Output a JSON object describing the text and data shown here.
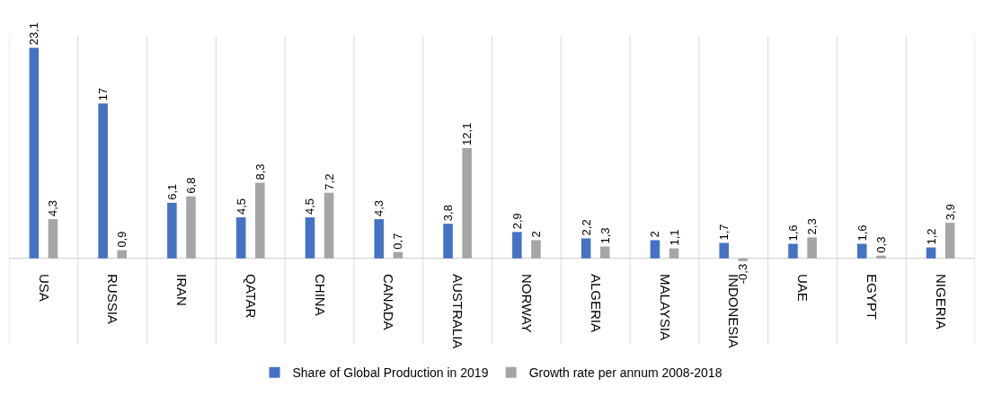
{
  "chart_data": {
    "type": "bar",
    "categories": [
      "USA",
      "RUSSIA",
      "IRAN",
      "QATAR",
      "CHINA",
      "CANADA",
      "AUSTRALIA",
      "NORWAY",
      "ALGERIA",
      "MALAYSIA",
      "INDONESIA",
      "UAE",
      "EGYPT",
      "NIGERIA"
    ],
    "series": [
      {
        "name": "Share of Global Production in 2019",
        "color": "#4472c4",
        "values": [
          23.1,
          17,
          6.1,
          4.5,
          4.5,
          4.3,
          3.8,
          2.9,
          2.2,
          2,
          1.7,
          1.6,
          1.6,
          1.2
        ],
        "value_labels": [
          "23,1",
          "17",
          "6,1",
          "4,5",
          "4,5",
          "4,3",
          "3,8",
          "2,9",
          "2,2",
          "2",
          "1,7",
          "1,6",
          "1,6",
          "1,2"
        ]
      },
      {
        "name": "Growth rate per annum 2008-2018",
        "color": "#a5a5a5",
        "values": [
          4.3,
          0.9,
          6.8,
          8.3,
          7.2,
          0.7,
          12.1,
          2,
          1.3,
          1.1,
          -0.3,
          2.3,
          0.3,
          3.9
        ],
        "value_labels": [
          "4,3",
          "0,9",
          "6,8",
          "8,3",
          "7,2",
          "0,7",
          "12,1",
          "2",
          "1,3",
          "1,1",
          "-0,3",
          "2,3",
          "0,3",
          "3,9"
        ]
      }
    ],
    "grid": "x",
    "legend": "bottom",
    "tick_labels": "x"
  }
}
